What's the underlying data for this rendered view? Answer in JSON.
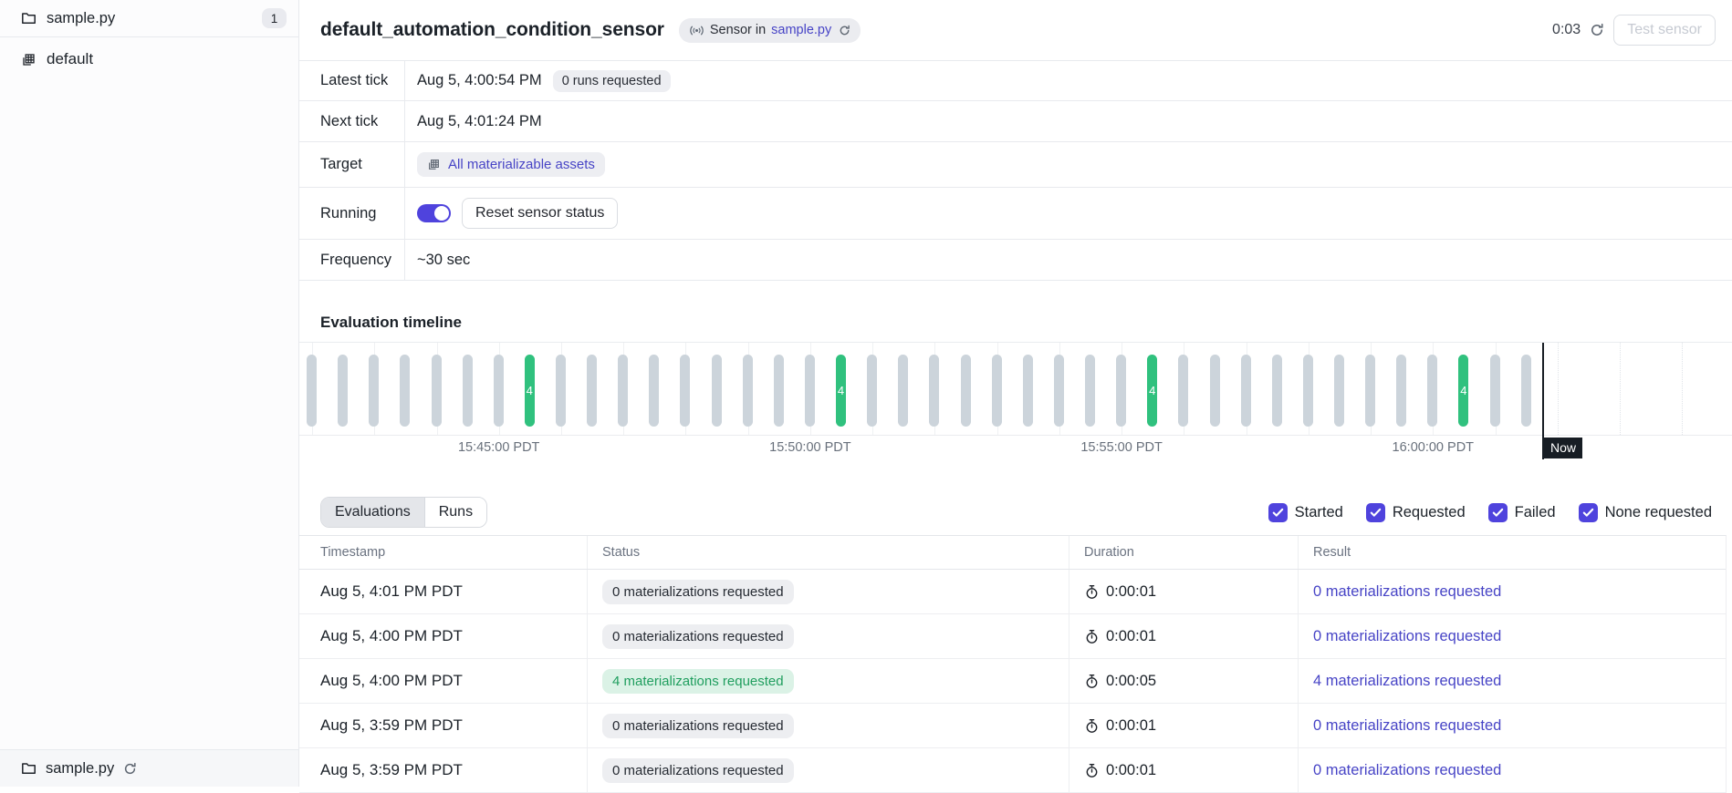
{
  "colors": {
    "accent": "#4F43DD",
    "link": "#4744C6",
    "tick_green": "#30C17E",
    "tick_gray": "#CCD4DB",
    "green_pill_bg": "#DBF2E6",
    "green_pill_text": "#1F9E5E",
    "now_marker": "#171D24"
  },
  "sidebar": {
    "top_item": {
      "icon": "folder-icon",
      "label": "sample.py",
      "badge": "1"
    },
    "items": [
      {
        "icon": "code-location-icon",
        "label": "default"
      }
    ],
    "footer_item": {
      "icon": "folder-icon",
      "label": "sample.py",
      "action_icon": "refresh-icon"
    }
  },
  "header": {
    "title": "default_automation_condition_sensor",
    "tag": {
      "icon": "sensor-icon",
      "prefix": "Sensor in",
      "link": "sample.py",
      "action_icon": "refresh-icon"
    },
    "countdown": "0:03",
    "test_button_label": "Test sensor"
  },
  "details": {
    "rows": [
      {
        "label": "Latest tick",
        "value": "Aug 5, 4:00:54 PM",
        "badge": "0 runs requested"
      },
      {
        "label": "Next tick",
        "value": "Aug 5, 4:01:24 PM"
      },
      {
        "label": "Target",
        "target_pill": {
          "icon": "asset-grid-icon",
          "label": "All materializable assets"
        }
      },
      {
        "label": "Running",
        "toggle_on": true,
        "button_label": "Reset sensor status"
      },
      {
        "label": "Frequency",
        "value": "~30 sec"
      }
    ]
  },
  "timeline": {
    "title": "Evaluation timeline",
    "now_label": "Now",
    "axis_labels": [
      "15:45:00 PDT",
      "15:50:00 PDT",
      "15:55:00 PDT",
      "16:00:00 PDT"
    ],
    "chart_data": {
      "type": "bar",
      "description": "Sensor tick history; one vertical pill per ~30 sec tick, green ticks requested materializations",
      "bar_count": 40,
      "requested_ticks": {
        "indices": [
          7,
          17,
          27,
          37
        ],
        "label": "4"
      },
      "axis_tick_labels": [
        "15:45:00 PDT",
        "15:50:00 PDT",
        "15:55:00 PDT",
        "16:00:00 PDT"
      ],
      "now_marker": "Now"
    }
  },
  "filters": {
    "tabs": [
      {
        "label": "Evaluations",
        "selected": true
      },
      {
        "label": "Runs",
        "selected": false
      }
    ],
    "checkboxes": [
      {
        "label": "Started",
        "checked": true
      },
      {
        "label": "Requested",
        "checked": true
      },
      {
        "label": "Failed",
        "checked": true
      },
      {
        "label": "None requested",
        "checked": true
      }
    ]
  },
  "table": {
    "columns": [
      "Timestamp",
      "Status",
      "Duration",
      "Result"
    ],
    "rows": [
      {
        "timestamp": "Aug 5, 4:01 PM PDT",
        "status": "0 materializations requested",
        "status_variant": "gray",
        "duration": "0:00:01",
        "result": "0 materializations requested"
      },
      {
        "timestamp": "Aug 5, 4:00 PM PDT",
        "status": "0 materializations requested",
        "status_variant": "gray",
        "duration": "0:00:01",
        "result": "0 materializations requested"
      },
      {
        "timestamp": "Aug 5, 4:00 PM PDT",
        "status": "4 materializations requested",
        "status_variant": "green",
        "duration": "0:00:05",
        "result": "4 materializations requested"
      },
      {
        "timestamp": "Aug 5, 3:59 PM PDT",
        "status": "0 materializations requested",
        "status_variant": "gray",
        "duration": "0:00:01",
        "result": "0 materializations requested"
      },
      {
        "timestamp": "Aug 5, 3:59 PM PDT",
        "status": "0 materializations requested",
        "status_variant": "gray",
        "duration": "0:00:01",
        "result": "0 materializations requested"
      }
    ]
  }
}
